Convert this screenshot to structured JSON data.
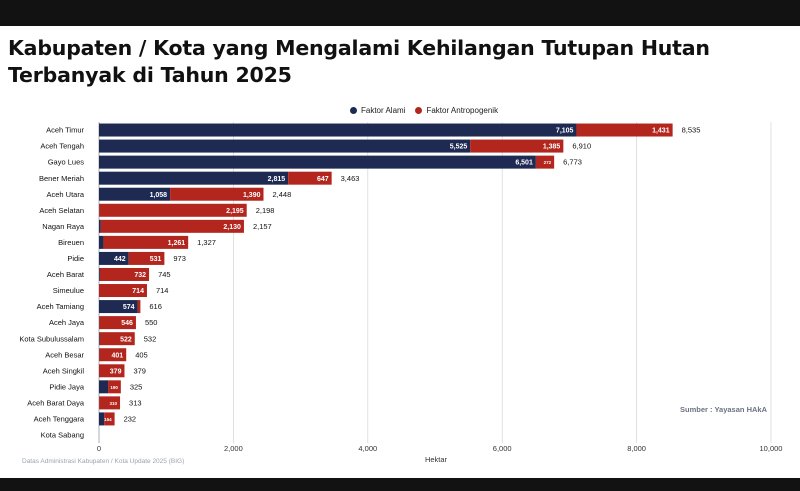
{
  "title": "Kabupaten / Kota yang Mengalami Kehilangan Tutupan Hutan Terbanyak di Tahun 2025",
  "source": "Sumber : Yayasan HAkA",
  "footnote": "Datas Administrasi Kabupaten / Kota Update 2025 (BIG)",
  "colors": {
    "alami": "#1f2a52",
    "antropogenik": "#b3261e"
  },
  "chart_data": {
    "type": "bar",
    "orientation": "horizontal",
    "stacked": true,
    "title": "Kabupaten / Kota yang Mengalami Kehilangan Tutupan Hutan Terbanyak di Tahun 2025",
    "xlabel": "Hektar",
    "ylabel": "",
    "xlim": [
      0,
      10000
    ],
    "xticks": [
      0,
      2000,
      4000,
      6000,
      8000,
      10000
    ],
    "xtick_labels": [
      "0",
      "2,000",
      "4,000",
      "6,000",
      "8,000",
      "10,000"
    ],
    "grid": true,
    "legend": "top-center",
    "categories": [
      "Aceh Timur",
      "Aceh Tengah",
      "Gayo Lues",
      "Bener Meriah",
      "Aceh Utara",
      "Aceh Selatan",
      "Nagan Raya",
      "Bireuen",
      "Pidie",
      "Aceh Barat",
      "Simeulue",
      "Aceh Tamiang",
      "Aceh Jaya",
      "Kota Subulussalam",
      "Aceh Besar",
      "Aceh Singkil",
      "Pidie Jaya",
      "Aceh Barat Daya",
      "Aceh Tenggara",
      "Kota Sabang"
    ],
    "series": [
      {
        "name": "Faktor Alami",
        "values": [
          7105,
          5525,
          6501,
          2815,
          1058,
          3,
          27,
          66,
          442,
          13,
          0,
          574,
          4,
          10,
          4,
          0,
          135,
          3,
          78,
          0
        ],
        "labels": [
          "7,105",
          "5,525",
          "6,501",
          "2,815",
          "1,058",
          "",
          "",
          "",
          "442",
          "",
          "",
          "574",
          "",
          "",
          "",
          "",
          "",
          "",
          "",
          ""
        ]
      },
      {
        "name": "Faktor Antropogenik",
        "values": [
          1431,
          1385,
          272,
          647,
          1390,
          2195,
          2130,
          1261,
          531,
          732,
          714,
          42,
          546,
          522,
          401,
          379,
          190,
          310,
          154,
          0
        ],
        "labels": [
          "1,431",
          "1,385",
          "272",
          "647",
          "1,390",
          "2,195",
          "2,130",
          "1,261",
          "531",
          "732",
          "714",
          "",
          "546",
          "522",
          "401",
          "379",
          "190",
          "310",
          "154",
          ""
        ]
      }
    ],
    "totals": [
      "8,535",
      "6,910",
      "6,773",
      "3,463",
      "2,448",
      "2,198",
      "2,157",
      "1,327",
      "973",
      "745",
      "714",
      "616",
      "550",
      "532",
      "405",
      "379",
      "325",
      "313",
      "232",
      ""
    ]
  }
}
